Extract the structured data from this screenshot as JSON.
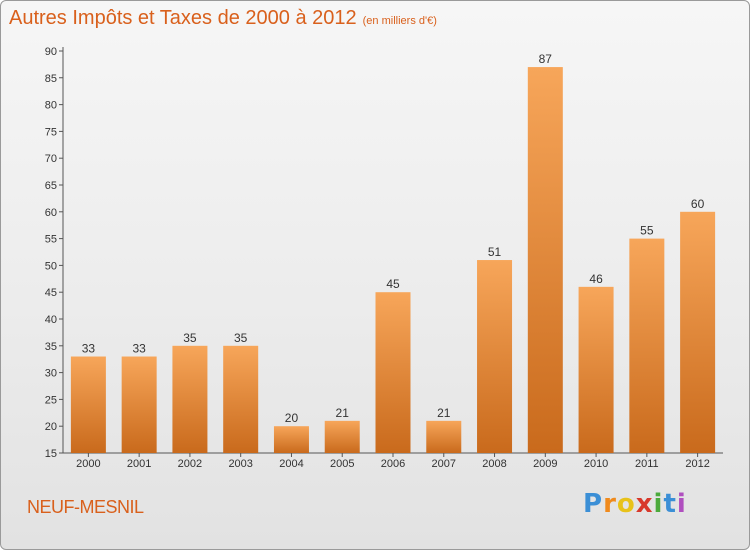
{
  "title": "Autres Impôts et Taxes de 2000 à 2012",
  "subtitle": "(en milliers d'€)",
  "commune": "NEUF-MESNIL",
  "logo": {
    "text": "Proxiti",
    "letters": [
      "P",
      "r",
      "o",
      "x",
      "i",
      "t",
      "i"
    ]
  },
  "colors": {
    "bar_light": "#f7a65a",
    "bar_dark": "#c96a1c",
    "title": "#d9601c"
  },
  "chart_data": {
    "type": "bar",
    "categories": [
      "2000",
      "2001",
      "2002",
      "2003",
      "2004",
      "2005",
      "2006",
      "2007",
      "2008",
      "2009",
      "2010",
      "2011",
      "2012"
    ],
    "values": [
      33,
      33,
      35,
      35,
      20,
      21,
      45,
      21,
      51,
      87,
      46,
      55,
      60
    ],
    "ylim": [
      15,
      90
    ],
    "yticks": [
      15,
      20,
      25,
      30,
      35,
      40,
      45,
      50,
      55,
      60,
      65,
      70,
      75,
      80,
      85,
      90
    ],
    "grid": false,
    "data_labels": true
  }
}
